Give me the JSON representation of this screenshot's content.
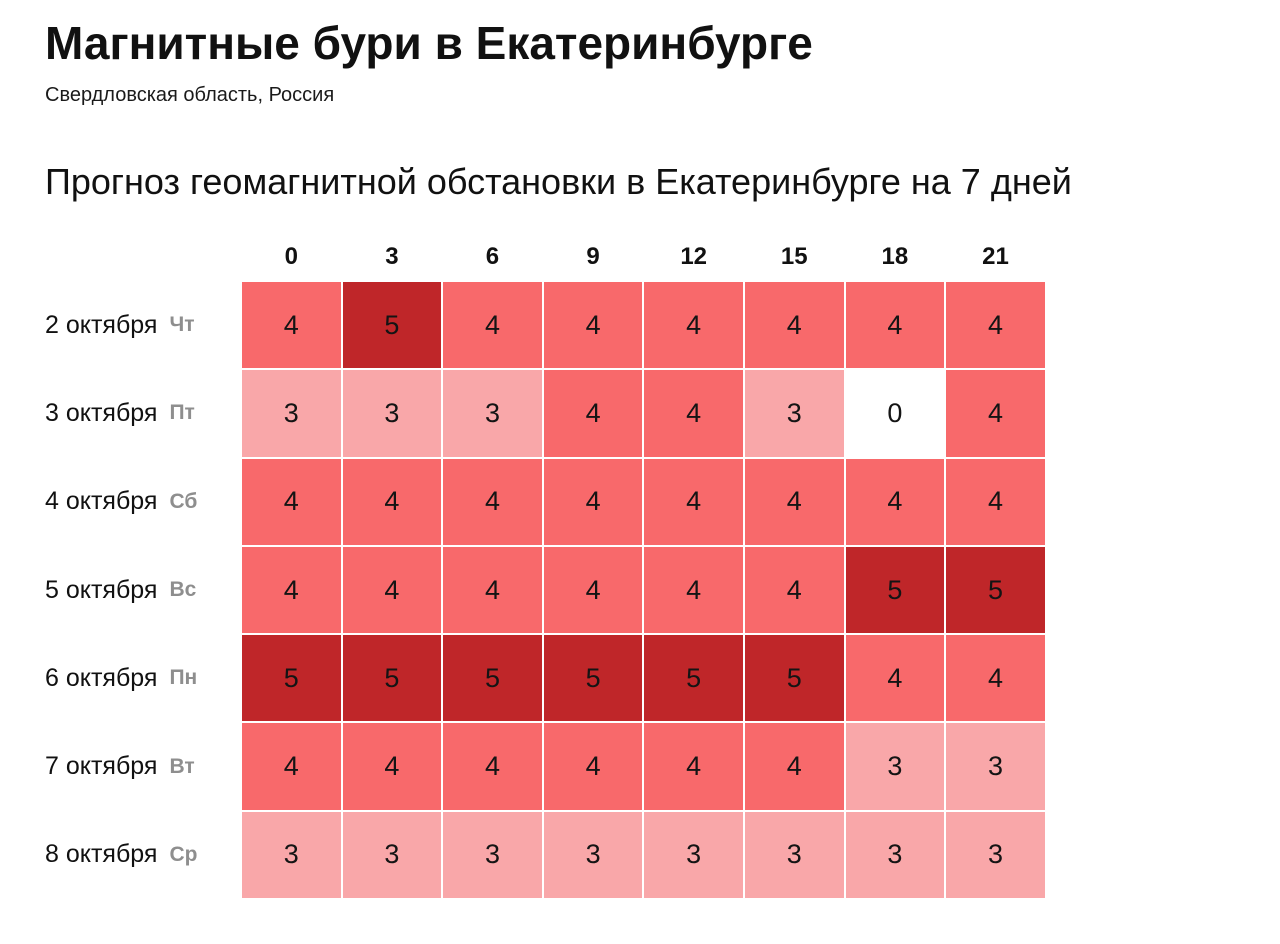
{
  "page": {
    "title": "Магнитные бури в Екатеринбурге",
    "subtitle": "Свердловская область, Россия",
    "section_heading": "Прогноз геомагнитной обстановки в Екатеринбурге на 7 дней"
  },
  "chart_data": {
    "type": "heatmap",
    "title": "Прогноз геомагнитной обстановки в Екатеринбурге на 7 дней",
    "x_ticks": [
      "0",
      "3",
      "6",
      "9",
      "12",
      "15",
      "18",
      "21"
    ],
    "rows": [
      {
        "date": "2 октября",
        "weekday": "Чт",
        "values": [
          4,
          5,
          4,
          4,
          4,
          4,
          4,
          4
        ]
      },
      {
        "date": "3 октября",
        "weekday": "Пт",
        "values": [
          3,
          3,
          3,
          4,
          4,
          3,
          0,
          4
        ]
      },
      {
        "date": "4 октября",
        "weekday": "Сб",
        "values": [
          4,
          4,
          4,
          4,
          4,
          4,
          4,
          4
        ]
      },
      {
        "date": "5 октября",
        "weekday": "Вс",
        "values": [
          4,
          4,
          4,
          4,
          4,
          4,
          5,
          5
        ]
      },
      {
        "date": "6 октября",
        "weekday": "Пн",
        "values": [
          5,
          5,
          5,
          5,
          5,
          5,
          4,
          4
        ]
      },
      {
        "date": "7 октября",
        "weekday": "Вт",
        "values": [
          4,
          4,
          4,
          4,
          4,
          4,
          3,
          3
        ]
      },
      {
        "date": "8 октября",
        "weekday": "Ср",
        "values": [
          3,
          3,
          3,
          3,
          3,
          3,
          3,
          3
        ]
      }
    ],
    "value_colors": {
      "0": "#ffffff",
      "3": "#f9a7a9",
      "4": "#f8696b",
      "5": "#bf2629"
    },
    "cell_text_color": "#141414",
    "legend": "none",
    "grid_gap_color": "#ffffff"
  }
}
